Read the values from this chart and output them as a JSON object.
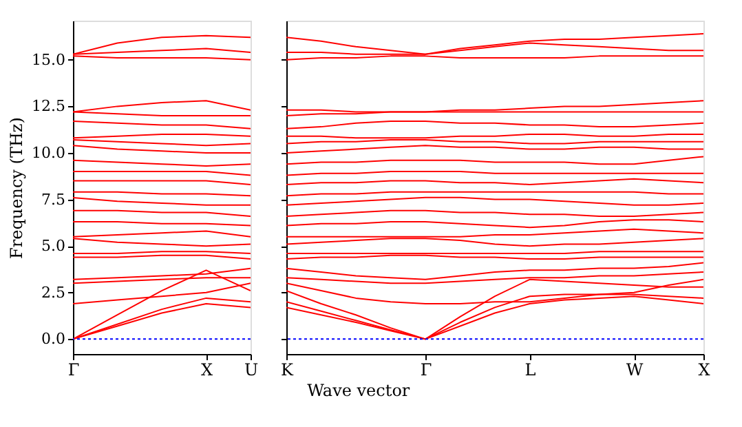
{
  "chart_data": [
    {
      "type": "line",
      "ylabel": "Frequency (THz)",
      "categories": [
        "Γ",
        null,
        null,
        "X",
        "U"
      ],
      "ylim": [
        -0.8,
        17.1
      ],
      "yticks": [
        {
          "value": 0,
          "label": "0.0"
        },
        {
          "value": 2.5,
          "label": "2.5"
        },
        {
          "value": 5,
          "label": "5.0"
        },
        {
          "value": 7.5,
          "label": "7.5"
        },
        {
          "value": 10,
          "label": "10.0"
        },
        {
          "value": 12.5,
          "label": "12.5"
        },
        {
          "value": 15,
          "label": "15.0"
        }
      ],
      "line_style": "solid",
      "ref_lines": [
        {
          "axis": "y",
          "value": 0,
          "color": "#0000ff",
          "line_style": "dotted"
        }
      ],
      "series": [
        {
          "color": "#ff0000",
          "values": [
            0,
            0.7,
            1.4,
            1.9,
            1.7
          ]
        },
        {
          "color": "#ff0000",
          "values": [
            0,
            0.8,
            1.6,
            2.2,
            2.0
          ]
        },
        {
          "color": "#ff0000",
          "values": [
            0,
            1.3,
            2.6,
            3.7,
            2.6
          ]
        },
        {
          "color": "#ff0000",
          "values": [
            1.9,
            2.1,
            2.3,
            2.5,
            3.0
          ]
        },
        {
          "color": "#ff0000",
          "values": [
            3.0,
            3.1,
            3.2,
            3.3,
            3.3
          ]
        },
        {
          "color": "#ff0000",
          "values": [
            3.2,
            3.3,
            3.4,
            3.5,
            3.8
          ]
        },
        {
          "color": "#ff0000",
          "values": [
            4.4,
            4.4,
            4.5,
            4.5,
            4.3
          ]
        },
        {
          "color": "#ff0000",
          "values": [
            4.6,
            4.6,
            4.7,
            4.7,
            4.6
          ]
        },
        {
          "color": "#ff0000",
          "values": [
            5.4,
            5.2,
            5.1,
            5.0,
            5.1
          ]
        },
        {
          "color": "#ff0000",
          "values": [
            5.5,
            5.6,
            5.7,
            5.8,
            5.5
          ]
        },
        {
          "color": "#ff0000",
          "values": [
            6.3,
            6.3,
            6.2,
            6.2,
            6.1
          ]
        },
        {
          "color": "#ff0000",
          "values": [
            6.9,
            6.9,
            6.8,
            6.8,
            6.6
          ]
        },
        {
          "color": "#ff0000",
          "values": [
            7.6,
            7.4,
            7.3,
            7.2,
            7.2
          ]
        },
        {
          "color": "#ff0000",
          "values": [
            7.9,
            7.9,
            7.8,
            7.8,
            7.7
          ]
        },
        {
          "color": "#ff0000",
          "values": [
            8.5,
            8.5,
            8.5,
            8.5,
            8.3
          ]
        },
        {
          "color": "#ff0000",
          "values": [
            9.0,
            9.0,
            9.0,
            9.0,
            8.8
          ]
        },
        {
          "color": "#ff0000",
          "values": [
            9.6,
            9.5,
            9.4,
            9.3,
            9.4
          ]
        },
        {
          "color": "#ff0000",
          "values": [
            10.4,
            10.2,
            10.1,
            10.0,
            10.0
          ]
        },
        {
          "color": "#ff0000",
          "values": [
            10.7,
            10.6,
            10.5,
            10.4,
            10.5
          ]
        },
        {
          "color": "#ff0000",
          "values": [
            10.8,
            10.9,
            11.0,
            11.0,
            10.9
          ]
        },
        {
          "color": "#ff0000",
          "values": [
            11.7,
            11.6,
            11.5,
            11.5,
            11.3
          ]
        },
        {
          "color": "#ff0000",
          "values": [
            12.2,
            12.1,
            12.0,
            12.0,
            12.0
          ]
        },
        {
          "color": "#ff0000",
          "values": [
            12.2,
            12.5,
            12.7,
            12.8,
            12.3
          ]
        },
        {
          "color": "#ff0000",
          "values": [
            15.2,
            15.1,
            15.1,
            15.1,
            15.0
          ]
        },
        {
          "color": "#ff0000",
          "values": [
            15.3,
            15.4,
            15.5,
            15.6,
            15.4
          ]
        },
        {
          "color": "#ff0000",
          "values": [
            15.3,
            15.9,
            16.2,
            16.3,
            16.2
          ]
        }
      ]
    },
    {
      "type": "line",
      "xlabel": "Wave vector",
      "categories": [
        "K",
        null,
        null,
        null,
        "Γ",
        null,
        null,
        "L",
        null,
        null,
        "W",
        null,
        "X"
      ],
      "ylim": [
        -0.8,
        17.1
      ],
      "yticks": [
        {
          "value": 0,
          "label": null
        },
        {
          "value": 2.5,
          "label": null
        },
        {
          "value": 5,
          "label": null
        },
        {
          "value": 7.5,
          "label": null
        },
        {
          "value": 10,
          "label": null
        },
        {
          "value": 12.5,
          "label": null
        },
        {
          "value": 15,
          "label": null
        }
      ],
      "tick_labels": "x",
      "line_style": "solid",
      "ref_lines": [
        {
          "axis": "y",
          "value": 0,
          "color": "#0000ff",
          "line_style": "dotted"
        }
      ],
      "series": [
        {
          "color": "#ff0000",
          "values": [
            1.7,
            1.3,
            0.9,
            0.45,
            0,
            0.7,
            1.4,
            1.9,
            2.1,
            2.2,
            2.3,
            2.1,
            1.9
          ]
        },
        {
          "color": "#ff0000",
          "values": [
            2.0,
            1.5,
            1.0,
            0.5,
            0,
            0.9,
            1.7,
            2.3,
            2.4,
            2.4,
            2.4,
            2.3,
            2.2
          ]
        },
        {
          "color": "#ff0000",
          "values": [
            2.6,
            1.9,
            1.3,
            0.6,
            0,
            1.2,
            2.3,
            3.2,
            3.1,
            3.0,
            2.9,
            2.8,
            2.8
          ]
        },
        {
          "color": "#ff0000",
          "values": [
            3.0,
            2.6,
            2.2,
            2.0,
            1.9,
            1.9,
            2.0,
            2.0,
            2.2,
            2.4,
            2.5,
            2.9,
            3.2
          ]
        },
        {
          "color": "#ff0000",
          "values": [
            3.3,
            3.2,
            3.1,
            3.0,
            3.0,
            3.1,
            3.2,
            3.3,
            3.3,
            3.4,
            3.4,
            3.5,
            3.6
          ]
        },
        {
          "color": "#ff0000",
          "values": [
            3.8,
            3.6,
            3.4,
            3.3,
            3.2,
            3.4,
            3.6,
            3.7,
            3.7,
            3.8,
            3.8,
            3.9,
            4.1
          ]
        },
        {
          "color": "#ff0000",
          "values": [
            4.3,
            4.4,
            4.4,
            4.5,
            4.5,
            4.4,
            4.4,
            4.3,
            4.3,
            4.4,
            4.4,
            4.4,
            4.4
          ]
        },
        {
          "color": "#ff0000",
          "values": [
            4.6,
            4.6,
            4.6,
            4.6,
            4.6,
            4.6,
            4.6,
            4.6,
            4.6,
            4.7,
            4.7,
            4.7,
            4.7
          ]
        },
        {
          "color": "#ff0000",
          "values": [
            5.1,
            5.2,
            5.3,
            5.4,
            5.4,
            5.3,
            5.1,
            5.0,
            5.1,
            5.1,
            5.2,
            5.3,
            5.4
          ]
        },
        {
          "color": "#ff0000",
          "values": [
            5.5,
            5.5,
            5.5,
            5.5,
            5.5,
            5.5,
            5.6,
            5.6,
            5.7,
            5.8,
            5.9,
            5.8,
            5.7
          ]
        },
        {
          "color": "#ff0000",
          "values": [
            6.1,
            6.2,
            6.2,
            6.3,
            6.3,
            6.2,
            6.1,
            6.0,
            6.1,
            6.3,
            6.4,
            6.4,
            6.3
          ]
        },
        {
          "color": "#ff0000",
          "values": [
            6.6,
            6.7,
            6.8,
            6.9,
            6.9,
            6.8,
            6.8,
            6.7,
            6.7,
            6.6,
            6.6,
            6.7,
            6.8
          ]
        },
        {
          "color": "#ff0000",
          "values": [
            7.2,
            7.3,
            7.4,
            7.5,
            7.6,
            7.6,
            7.5,
            7.5,
            7.4,
            7.3,
            7.2,
            7.2,
            7.3
          ]
        },
        {
          "color": "#ff0000",
          "values": [
            7.7,
            7.8,
            7.8,
            7.9,
            7.9,
            7.9,
            7.9,
            7.9,
            7.9,
            7.9,
            7.9,
            7.8,
            7.8
          ]
        },
        {
          "color": "#ff0000",
          "values": [
            8.3,
            8.4,
            8.4,
            8.5,
            8.5,
            8.4,
            8.4,
            8.3,
            8.4,
            8.5,
            8.6,
            8.5,
            8.4
          ]
        },
        {
          "color": "#ff0000",
          "values": [
            8.8,
            8.9,
            8.9,
            9.0,
            9.0,
            9.0,
            8.9,
            8.9,
            8.9,
            8.9,
            8.9,
            8.9,
            8.9
          ]
        },
        {
          "color": "#ff0000",
          "values": [
            9.4,
            9.5,
            9.5,
            9.6,
            9.6,
            9.6,
            9.5,
            9.5,
            9.5,
            9.4,
            9.4,
            9.6,
            9.8
          ]
        },
        {
          "color": "#ff0000",
          "values": [
            10.0,
            10.1,
            10.2,
            10.3,
            10.4,
            10.3,
            10.3,
            10.2,
            10.2,
            10.3,
            10.3,
            10.2,
            10.2
          ]
        },
        {
          "color": "#ff0000",
          "values": [
            10.5,
            10.6,
            10.6,
            10.7,
            10.7,
            10.6,
            10.6,
            10.5,
            10.5,
            10.6,
            10.6,
            10.6,
            10.6
          ]
        },
        {
          "color": "#ff0000",
          "values": [
            10.9,
            10.9,
            10.8,
            10.8,
            10.8,
            10.9,
            10.9,
            11.0,
            11.0,
            10.9,
            10.9,
            11.0,
            11.0
          ]
        },
        {
          "color": "#ff0000",
          "values": [
            11.3,
            11.4,
            11.6,
            11.7,
            11.7,
            11.6,
            11.6,
            11.5,
            11.5,
            11.4,
            11.4,
            11.5,
            11.6
          ]
        },
        {
          "color": "#ff0000",
          "values": [
            12.0,
            12.1,
            12.1,
            12.2,
            12.2,
            12.2,
            12.2,
            12.2,
            12.2,
            12.2,
            12.2,
            12.2,
            12.2
          ]
        },
        {
          "color": "#ff0000",
          "values": [
            12.3,
            12.3,
            12.2,
            12.2,
            12.2,
            12.3,
            12.3,
            12.4,
            12.5,
            12.5,
            12.6,
            12.7,
            12.8
          ]
        },
        {
          "color": "#ff0000",
          "values": [
            15.0,
            15.1,
            15.1,
            15.2,
            15.2,
            15.1,
            15.1,
            15.1,
            15.1,
            15.2,
            15.2,
            15.2,
            15.2
          ]
        },
        {
          "color": "#ff0000",
          "values": [
            15.4,
            15.4,
            15.3,
            15.3,
            15.3,
            15.5,
            15.7,
            15.9,
            15.8,
            15.7,
            15.6,
            15.5,
            15.5
          ]
        },
        {
          "color": "#ff0000",
          "values": [
            16.2,
            16.0,
            15.7,
            15.5,
            15.3,
            15.6,
            15.8,
            16.0,
            16.1,
            16.1,
            16.2,
            16.3,
            16.4
          ]
        }
      ]
    }
  ]
}
